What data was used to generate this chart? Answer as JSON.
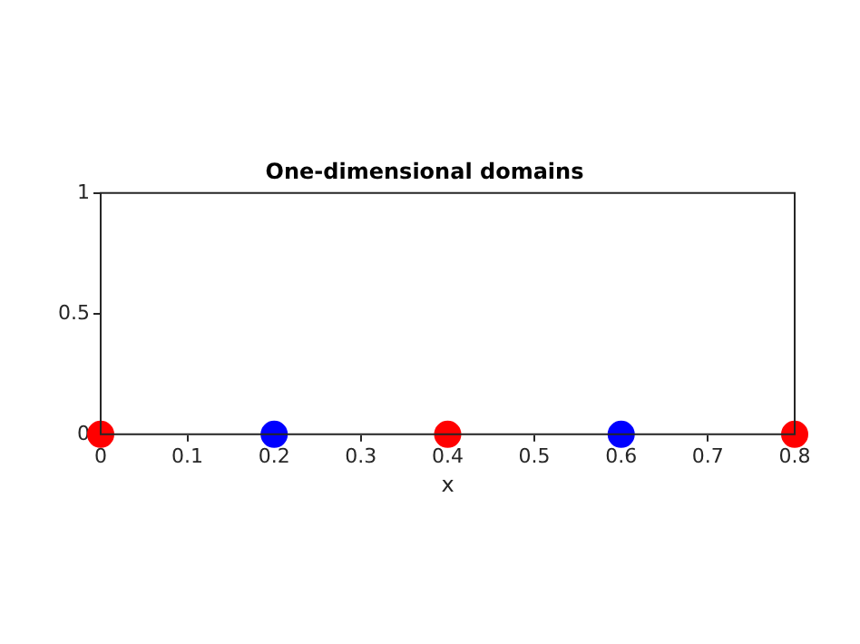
{
  "chart_data": {
    "type": "scatter",
    "title": "One-dimensional domains",
    "xlabel": "x",
    "xlim": [
      0,
      0.8
    ],
    "xticks": [
      0,
      0.1,
      0.2,
      0.3,
      0.4,
      0.5,
      0.6,
      0.7,
      0.8
    ],
    "ylim": [
      0,
      1
    ],
    "yticks": [
      0,
      0.5,
      1
    ],
    "grid": false,
    "legend": false,
    "marker": "circle",
    "series": [
      {
        "color": "#ff0000",
        "x": [
          0,
          0.4,
          0.8
        ],
        "values": [
          0,
          0,
          0
        ]
      },
      {
        "color": "#0000ff",
        "x": [
          0.2,
          0.6
        ],
        "values": [
          0,
          0
        ]
      }
    ]
  }
}
